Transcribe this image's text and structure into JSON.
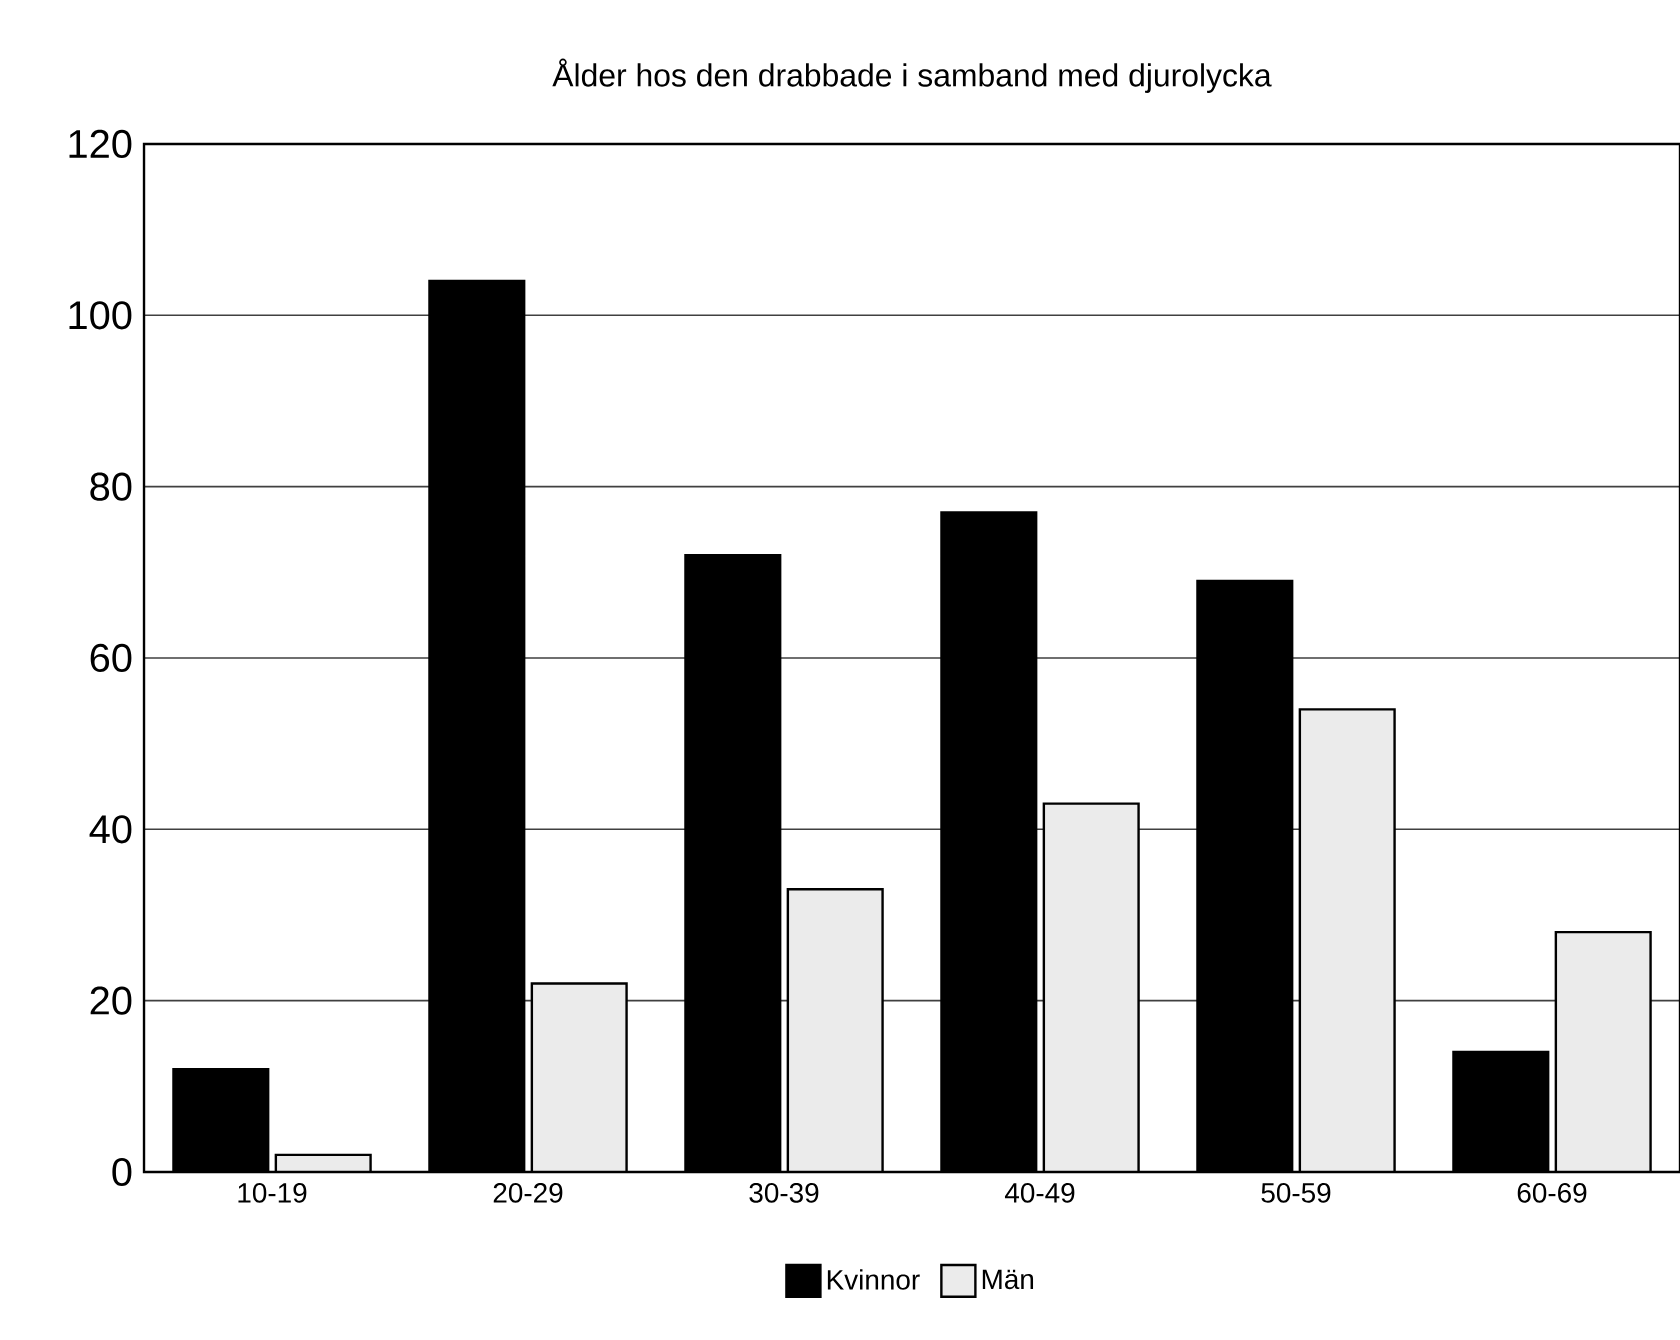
{
  "chart_data": {
    "type": "bar",
    "title": "Ålder hos den drabbade i samband med djurolycka",
    "categories": [
      "10-19",
      "20-29",
      "30-39",
      "40-49",
      "50-59",
      "60-69"
    ],
    "series": [
      {
        "name": "Kvinnor",
        "color": "#000000",
        "values": [
          12,
          104,
          72,
          77,
          69,
          14
        ]
      },
      {
        "name": "Män",
        "color": "#ebebeb",
        "values": [
          2,
          22,
          33,
          43,
          54,
          28
        ]
      }
    ],
    "ylim": [
      0,
      120
    ],
    "yticks": [
      0,
      20,
      40,
      60,
      80,
      100,
      120
    ],
    "grid": "y",
    "legend": "bottom"
  }
}
